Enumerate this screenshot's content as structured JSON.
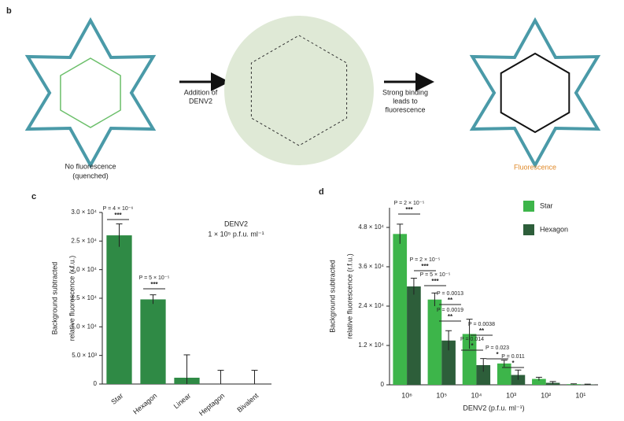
{
  "panel_b": {
    "label": "b",
    "left_caption": [
      "No fluorescence",
      "(quenched)"
    ],
    "arrow1_label": [
      "Addition of",
      "DENV2"
    ],
    "arrow2_label": [
      "Strong binding",
      "leads to",
      "fluorescence"
    ],
    "right_caption": "Fluorescence"
  },
  "chart_data": [
    {
      "type": "bar",
      "panel_label": "c",
      "subtitle": [
        "DENV2",
        "1 × 10⁵ p.f.u. ml⁻¹"
      ],
      "y_label": [
        "Background subtracted",
        "relative fluorescence (r.f.u.)"
      ],
      "categories": [
        "Star",
        "Hexagon",
        "Linear",
        "Heptagon",
        "Bivalent"
      ],
      "values": [
        26000,
        14800,
        1100,
        0,
        0
      ],
      "errors": [
        2000,
        800,
        4000,
        2400,
        2400
      ],
      "color": "#2f8a45",
      "ylim": [
        0,
        30000
      ],
      "yticks": [
        0,
        {
          "value": 5000,
          "label": "5.0 × 10³"
        },
        {
          "value": 10000,
          "label": "1.0 × 10⁴"
        },
        {
          "value": 15000,
          "label": "1.5 × 10⁴"
        },
        {
          "value": 20000,
          "label": "2.0 × 10⁴"
        },
        {
          "value": 25000,
          "label": "2.5 × 10⁴"
        },
        {
          "value": 30000,
          "label": "3.0 × 10⁴"
        }
      ],
      "annotations": [
        {
          "text": "P = 4 × 10⁻⁶",
          "stars": "***"
        },
        {
          "text": "P = 5 × 10⁻⁵",
          "stars": "***"
        }
      ]
    },
    {
      "type": "bar",
      "panel_label": "d",
      "x_label": "DENV2 (p.f.u. ml⁻¹)",
      "y_label": [
        "Background subtracted",
        "relative fluorescence (r.f.u.)"
      ],
      "categories": [
        "10⁶",
        "10⁵",
        "10⁴",
        "10³",
        "10²",
        "10¹"
      ],
      "series": [
        {
          "name": "Star",
          "color": "#3db54a",
          "values": [
            46000,
            26000,
            15500,
            6500,
            1800,
            200
          ],
          "errors": [
            3000,
            2000,
            4500,
            1000,
            500,
            100
          ]
        },
        {
          "name": "Hexagon",
          "color": "#2d5e3a",
          "values": [
            30000,
            13500,
            6000,
            3000,
            600,
            100
          ],
          "errors": [
            2500,
            3000,
            2000,
            1500,
            400,
            100
          ]
        }
      ],
      "ylim": [
        0,
        54000
      ],
      "yticks": [
        0,
        {
          "value": 12000,
          "label": "1.2 × 10⁴"
        },
        {
          "value": 24000,
          "label": "2.4 × 10⁴"
        },
        {
          "value": 36000,
          "label": "3.6 × 10⁴"
        },
        {
          "value": 48000,
          "label": "4.8 × 10⁴"
        }
      ],
      "annotations": [
        {
          "text": "P = 2 × 10⁻⁵",
          "stars": "***"
        },
        {
          "text": "P = 2 × 10⁻⁵",
          "stars": "***"
        },
        {
          "text": "P = 5 × 10⁻⁵",
          "stars": "***"
        },
        {
          "text": "P = 0.0019",
          "stars": "**"
        },
        {
          "text": "P = 0.0013",
          "stars": "**"
        },
        {
          "text": "P = 0.0038",
          "stars": "**"
        },
        {
          "text": "P = 0.014",
          "stars": "*"
        },
        {
          "text": "P = 0.023",
          "stars": "*"
        },
        {
          "text": "P = 0.011",
          "stars": "*"
        }
      ]
    }
  ]
}
